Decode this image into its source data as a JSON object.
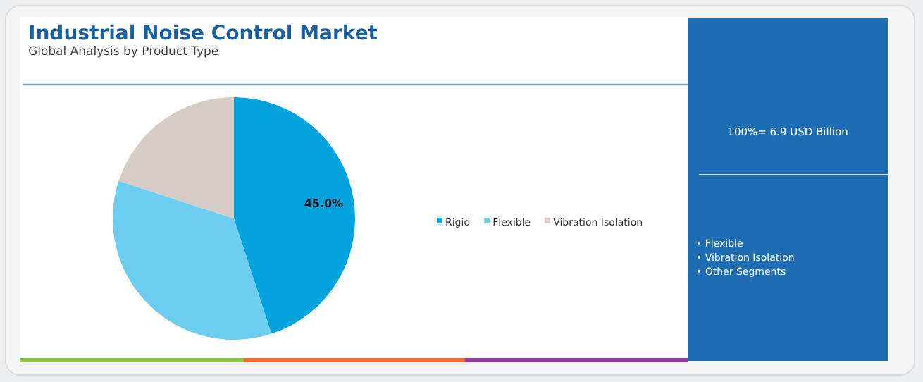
{
  "chart_data": {
    "type": "pie",
    "title": "Industrial Noise Control Market",
    "subtitle": "Global Analysis by Product Type",
    "categories": [
      "Rigid",
      "Flexible",
      "Vibration Isolation"
    ],
    "values": [
      45,
      35,
      20
    ],
    "colors": [
      "#00a3db",
      "#6ccdf0",
      "#d5cbc7"
    ],
    "value_labels": [
      "45.0%",
      null,
      null
    ],
    "legend": "right",
    "annotations": [
      "100%= 6.9 USD Billion",
      "• Flexible",
      "• Vibration Isolation",
      "• Other Segments"
    ]
  }
}
